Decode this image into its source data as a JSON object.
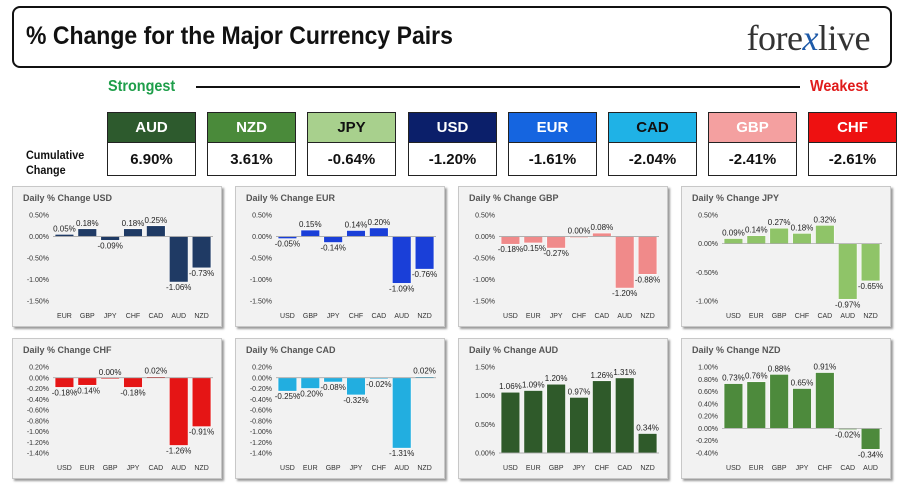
{
  "header": {
    "title": "% Change for the Major Currency Pairs",
    "logo_left": "fore",
    "logo_x": "x",
    "logo_right": "live"
  },
  "strength": {
    "strongest_label": "Strongest",
    "weakest_label": "Weakest",
    "cumulative_label": "Cumulative Change"
  },
  "tiles": [
    {
      "currency": "AUD",
      "value": "6.90%",
      "bg": "#2d5a2d",
      "fg": "#ffffff"
    },
    {
      "currency": "NZD",
      "value": "3.61%",
      "bg": "#4a8a3a",
      "fg": "#ffffff"
    },
    {
      "currency": "JPY",
      "value": "-0.64%",
      "bg": "#a8d08d",
      "fg": "#111111"
    },
    {
      "currency": "USD",
      "value": "-1.20%",
      "bg": "#0b1f6a",
      "fg": "#ffffff"
    },
    {
      "currency": "EUR",
      "value": "-1.61%",
      "bg": "#1565e0",
      "fg": "#ffffff"
    },
    {
      "currency": "CAD",
      "value": "-2.04%",
      "bg": "#1fb2e6",
      "fg": "#111111"
    },
    {
      "currency": "GBP",
      "value": "-2.41%",
      "bg": "#f4a0a0",
      "fg": "#ffffff"
    },
    {
      "currency": "CHF",
      "value": "-2.61%",
      "bg": "#ee1111",
      "fg": "#ffffff"
    }
  ],
  "chart_data": [
    {
      "type": "bar",
      "title": "Daily % Change USD",
      "categories": [
        "EUR",
        "GBP",
        "JPY",
        "CHF",
        "CAD",
        "AUD",
        "NZD"
      ],
      "values": [
        0.05,
        0.18,
        -0.09,
        0.18,
        0.25,
        -1.06,
        -0.73
      ],
      "labels": [
        "0.05%",
        "0.18%",
        "-0.09%",
        "0.18%",
        "0.25%",
        "-1.06%",
        "-0.73%"
      ],
      "ylim": [
        -1.5,
        0.5
      ],
      "yticks": [
        "0.50%",
        "0.00%",
        "-0.50%",
        "-1.00%",
        "-1.50%"
      ],
      "pos_color": "#1f3a64",
      "neg_color": "#1f3a64"
    },
    {
      "type": "bar",
      "title": "Daily % Change EUR",
      "categories": [
        "USD",
        "GBP",
        "JPY",
        "CHF",
        "CAD",
        "AUD",
        "NZD"
      ],
      "values": [
        -0.05,
        0.15,
        -0.14,
        0.14,
        0.2,
        -1.09,
        -0.76
      ],
      "labels": [
        "-0.05%",
        "0.15%",
        "-0.14%",
        "0.14%",
        "0.20%",
        "-1.09%",
        "-0.76%"
      ],
      "ylim": [
        -1.5,
        0.5
      ],
      "yticks": [
        "0.50%",
        "0.00%",
        "-0.50%",
        "-1.00%",
        "-1.50%"
      ],
      "pos_color": "#1a3fd8",
      "neg_color": "#1a3fd8"
    },
    {
      "type": "bar",
      "title": "Daily % Change GBP",
      "categories": [
        "USD",
        "EUR",
        "JPY",
        "CHF",
        "CAD",
        "AUD",
        "NZD"
      ],
      "values": [
        -0.18,
        -0.15,
        -0.27,
        0.0,
        0.08,
        -1.2,
        -0.88
      ],
      "labels": [
        "-0.18%",
        "-0.15%",
        "-0.27%",
        "0.00%",
        "0.08%",
        "-1.20%",
        "-0.88%"
      ],
      "ylim": [
        -1.5,
        0.5
      ],
      "yticks": [
        "0.50%",
        "0.00%",
        "-0.50%",
        "-1.00%",
        "-1.50%"
      ],
      "pos_color": "#f08a8a",
      "neg_color": "#f08a8a"
    },
    {
      "type": "bar",
      "title": "Daily % Change JPY",
      "categories": [
        "USD",
        "EUR",
        "GBP",
        "CHF",
        "CAD",
        "AUD",
        "NZD"
      ],
      "values": [
        0.09,
        0.14,
        0.27,
        0.18,
        0.32,
        -0.97,
        -0.65
      ],
      "labels": [
        "0.09%",
        "0.14%",
        "0.27%",
        "0.18%",
        "0.32%",
        "-0.97%",
        "-0.65%"
      ],
      "ylim": [
        -1.0,
        0.5
      ],
      "yticks": [
        "0.50%",
        "0.00%",
        "-0.50%",
        "-1.00%"
      ],
      "pos_color": "#8fc468",
      "neg_color": "#8fc468"
    },
    {
      "type": "bar",
      "title": "Daily % Change CHF",
      "categories": [
        "USD",
        "EUR",
        "GBP",
        "JPY",
        "CAD",
        "AUD",
        "NZD"
      ],
      "values": [
        -0.18,
        -0.14,
        0.0,
        -0.18,
        0.02,
        -1.26,
        -0.91
      ],
      "labels": [
        "-0.18%",
        "-0.14%",
        "0.00%",
        "-0.18%",
        "0.02%",
        "-1.26%",
        "-0.91%"
      ],
      "ylim": [
        -1.4,
        0.2
      ],
      "yticks": [
        "0.20%",
        "0.00%",
        "-0.20%",
        "-0.40%",
        "-0.60%",
        "-0.80%",
        "-1.00%",
        "-1.20%",
        "-1.40%"
      ],
      "pos_color": "#e51515",
      "neg_color": "#e51515"
    },
    {
      "type": "bar",
      "title": "Daily % Change CAD",
      "categories": [
        "USD",
        "EUR",
        "GBP",
        "JPY",
        "CHF",
        "AUD",
        "NZD"
      ],
      "values": [
        -0.25,
        -0.2,
        -0.08,
        -0.32,
        -0.02,
        -1.31,
        0.02
      ],
      "labels": [
        "-0.25%",
        "-0.20%",
        "-0.08%",
        "-0.32%",
        "-0.02%",
        "-1.31%",
        "0.02%"
      ],
      "ylim": [
        -1.4,
        0.2
      ],
      "yticks": [
        "0.20%",
        "0.00%",
        "-0.20%",
        "-0.40%",
        "-0.60%",
        "-0.80%",
        "-1.00%",
        "-1.20%",
        "-1.40%"
      ],
      "pos_color": "#22aee0",
      "neg_color": "#22aee0"
    },
    {
      "type": "bar",
      "title": "Daily % Change AUD",
      "categories": [
        "USD",
        "EUR",
        "GBP",
        "JPY",
        "CHF",
        "CAD",
        "NZD"
      ],
      "values": [
        1.06,
        1.09,
        1.2,
        0.97,
        1.26,
        1.31,
        0.34
      ],
      "labels": [
        "1.06%",
        "1.09%",
        "1.20%",
        "0.97%",
        "1.26%",
        "1.31%",
        "0.34%"
      ],
      "ylim": [
        0,
        1.5
      ],
      "yticks": [
        "1.50%",
        "1.00%",
        "0.50%",
        "0.00%"
      ],
      "pos_color": "#2f5a2a",
      "neg_color": "#2f5a2a"
    },
    {
      "type": "bar",
      "title": "Daily % Change NZD",
      "categories": [
        "USD",
        "EUR",
        "GBP",
        "JPY",
        "CHF",
        "CAD",
        "AUD"
      ],
      "values": [
        0.73,
        0.76,
        0.88,
        0.65,
        0.91,
        -0.02,
        -0.34
      ],
      "labels": [
        "0.73%",
        "0.76%",
        "0.88%",
        "0.65%",
        "0.91%",
        "-0.02%",
        "-0.34%"
      ],
      "ylim": [
        -0.4,
        1.0
      ],
      "yticks": [
        "1.00%",
        "0.80%",
        "0.60%",
        "0.40%",
        "0.20%",
        "0.00%",
        "-0.20%",
        "-0.40%"
      ],
      "pos_color": "#4d8a3c",
      "neg_color": "#4d8a3c"
    }
  ]
}
